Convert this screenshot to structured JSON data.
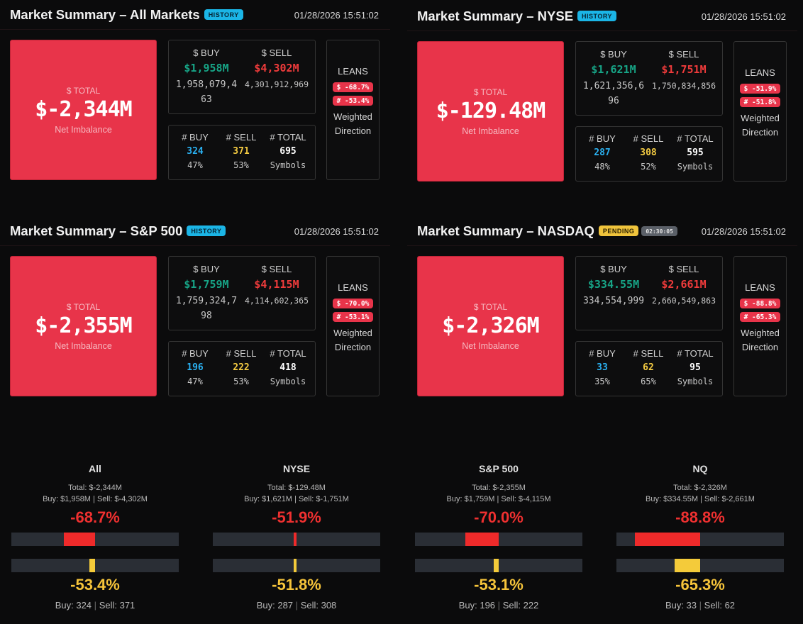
{
  "colors": {
    "buy": "#17a587",
    "sell": "#ef3b3b",
    "total_box": "#e8344a",
    "history_badge": "#1bb5e6",
    "pending_badge": "#f0c43c"
  },
  "panels": {
    "all": {
      "title": "Market Summary – All Markets",
      "badge": "HISTORY",
      "date": "01/28/2026 15:51:02",
      "total_label": "$ TOTAL",
      "total": "$-2,344M",
      "total_sub": "Net Imbalance",
      "buy_label": "$ BUY",
      "buy_m": "$1,958M",
      "buy_exact": "1,958,079,463",
      "sell_label": "$ SELL",
      "sell_m": "$4,302M",
      "sell_exact": "4,301,912,969",
      "cnt_buy_label": "# BUY",
      "cnt_buy": "324",
      "cnt_buy_pct": "47%",
      "cnt_sell_label": "# SELL",
      "cnt_sell": "371",
      "cnt_sell_pct": "53%",
      "cnt_total_label": "# TOTAL",
      "cnt_total": "695",
      "cnt_total_sub": "Symbols",
      "leans": "LEANS",
      "lean_dollar": "$ -68.7%",
      "lean_count": "# -53.4%",
      "weighted": "Weighted Direction"
    },
    "nyse": {
      "title": "Market Summary – NYSE",
      "badge": "HISTORY",
      "date": "01/28/2026 15:51:02",
      "total_label": "$ TOTAL",
      "total": "$-129.48M",
      "total_sub": "Net Imbalance",
      "buy_label": "$ BUY",
      "buy_m": "$1,621M",
      "buy_exact": "1,621,356,696",
      "sell_label": "$ SELL",
      "sell_m": "$1,751M",
      "sell_exact": "1,750,834,856",
      "cnt_buy_label": "# BUY",
      "cnt_buy": "287",
      "cnt_buy_pct": "48%",
      "cnt_sell_label": "# SELL",
      "cnt_sell": "308",
      "cnt_sell_pct": "52%",
      "cnt_total_label": "# TOTAL",
      "cnt_total": "595",
      "cnt_total_sub": "Symbols",
      "leans": "LEANS",
      "lean_dollar": "$ -51.9%",
      "lean_count": "# -51.8%",
      "weighted": "Weighted Direction"
    },
    "sp500": {
      "title": "Market Summary – S&P 500",
      "badge": "HISTORY",
      "date": "01/28/2026 15:51:02",
      "total_label": "$ TOTAL",
      "total": "$-2,355M",
      "total_sub": "Net Imbalance",
      "buy_label": "$ BUY",
      "buy_m": "$1,759M",
      "buy_exact": "1,759,324,798",
      "sell_label": "$ SELL",
      "sell_m": "$4,115M",
      "sell_exact": "4,114,602,365",
      "cnt_buy_label": "# BUY",
      "cnt_buy": "196",
      "cnt_buy_pct": "47%",
      "cnt_sell_label": "# SELL",
      "cnt_sell": "222",
      "cnt_sell_pct": "53%",
      "cnt_total_label": "# TOTAL",
      "cnt_total": "418",
      "cnt_total_sub": "Symbols",
      "leans": "LEANS",
      "lean_dollar": "$ -70.0%",
      "lean_count": "# -53.1%",
      "weighted": "Weighted Direction"
    },
    "nasdaq": {
      "title": "Market Summary – NASDAQ",
      "badge": "PENDING",
      "timer": "02:30:05",
      "date": "01/28/2026 15:51:02",
      "total_label": "$ TOTAL",
      "total": "$-2,326M",
      "total_sub": "Net Imbalance",
      "buy_label": "$ BUY",
      "buy_m": "$334.55M",
      "buy_exact": "334,554,999",
      "sell_label": "$ SELL",
      "sell_m": "$2,661M",
      "sell_exact": "2,660,549,863",
      "cnt_buy_label": "# BUY",
      "cnt_buy": "33",
      "cnt_buy_pct": "35%",
      "cnt_sell_label": "# SELL",
      "cnt_sell": "62",
      "cnt_sell_pct": "65%",
      "cnt_total_label": "# TOTAL",
      "cnt_total": "95",
      "cnt_total_sub": "Symbols",
      "leans": "LEANS",
      "lean_dollar": "$ -88.8%",
      "lean_count": "# -65.3%",
      "weighted": "Weighted Direction"
    }
  },
  "summary": [
    {
      "title": "All",
      "total": "Total: $-2,344M",
      "buy": "Buy: $1,958M",
      "sell": "Sell: $-4,302M",
      "dollar_pct": "-68.7%",
      "dollar_lean": -0.687,
      "count_pct": "-53.4%",
      "count_lean": -0.534,
      "buy_count": "Buy: 324",
      "sell_count": "Sell: 371"
    },
    {
      "title": "NYSE",
      "total": "Total: $-129.48M",
      "buy": "Buy: $1,621M",
      "sell": "Sell: $-1,751M",
      "dollar_pct": "-51.9%",
      "dollar_lean": -0.519,
      "count_pct": "-51.8%",
      "count_lean": -0.518,
      "buy_count": "Buy: 287",
      "sell_count": "Sell: 308"
    },
    {
      "title": "S&P 500",
      "total": "Total: $-2,355M",
      "buy": "Buy: $1,759M",
      "sell": "Sell: $-4,115M",
      "dollar_pct": "-70.0%",
      "dollar_lean": -0.7,
      "count_pct": "-53.1%",
      "count_lean": -0.531,
      "buy_count": "Buy: 196",
      "sell_count": "Sell: 222"
    },
    {
      "title": "NQ",
      "total": "Total: $-2,326M",
      "buy": "Buy: $334.55M",
      "sell": "Sell: $-2,661M",
      "dollar_pct": "-88.8%",
      "dollar_lean": -0.888,
      "count_pct": "-65.3%",
      "count_lean": -0.653,
      "buy_count": "Buy: 33",
      "sell_count": "Sell: 62"
    }
  ]
}
